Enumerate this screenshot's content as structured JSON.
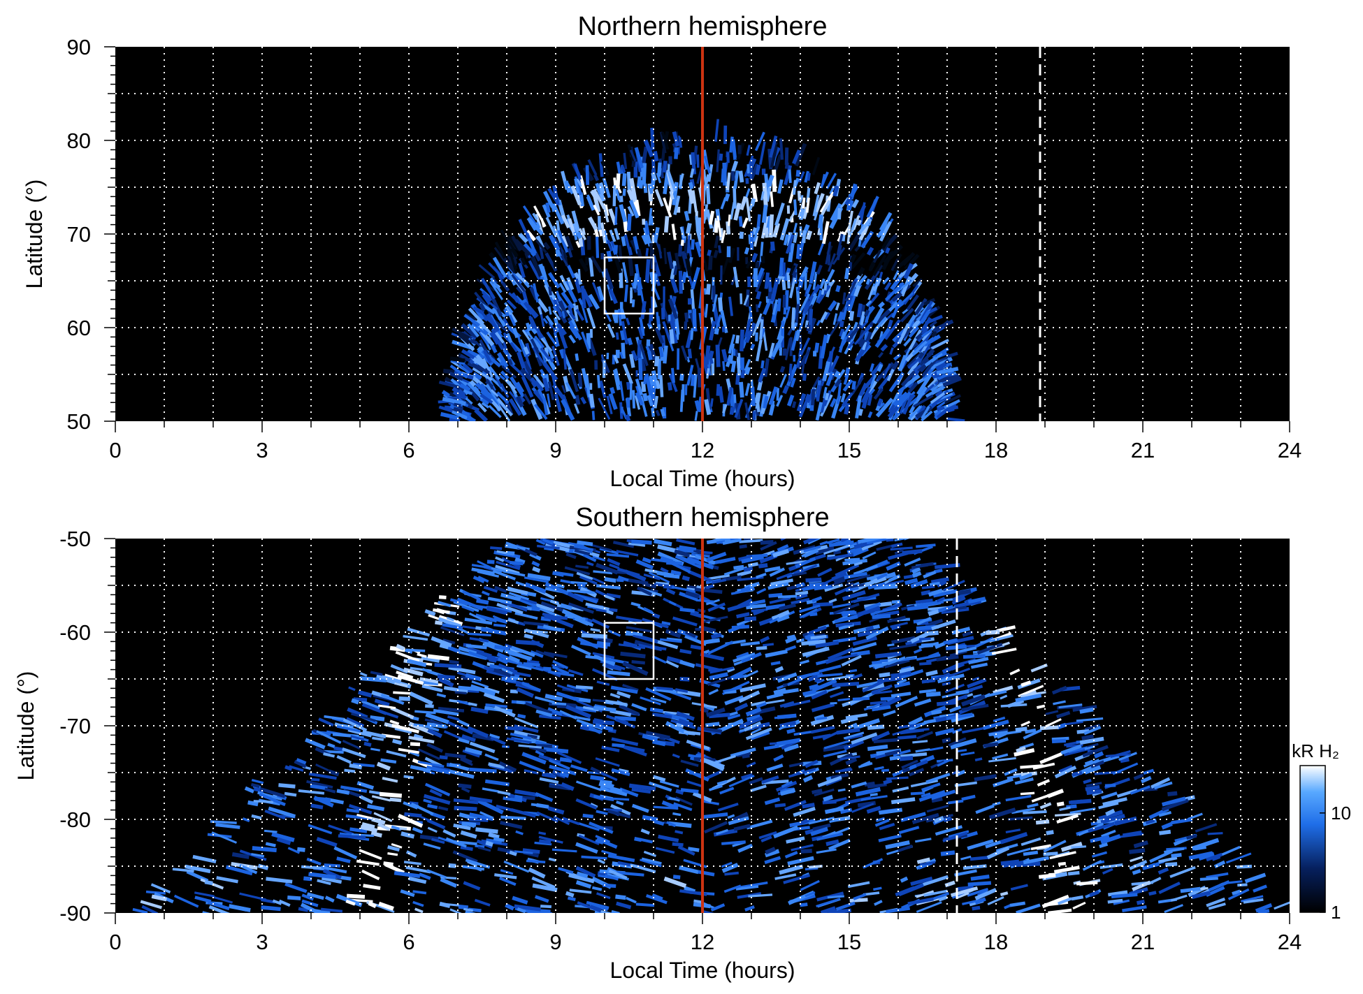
{
  "chart_data": [
    {
      "type": "heatmap",
      "title": "Northern hemisphere",
      "xlabel": "Local Time (hours)",
      "ylabel": "Latitude (°)",
      "xlim": [
        0,
        24
      ],
      "ylim": [
        50,
        90
      ],
      "xticks": [
        0,
        3,
        6,
        9,
        12,
        15,
        18,
        21,
        24
      ],
      "yticks": [
        50,
        60,
        70,
        80,
        90
      ],
      "grid": true,
      "background": "#000000",
      "colormap": "black-blue-white",
      "emission": {
        "center_lt": 12,
        "center_lat": 50,
        "half_width_lt": 5,
        "lat_extent": 30,
        "bright_ring_lat": 71,
        "dark_ring_lat": 67
      },
      "noon_line": {
        "x": 12,
        "color": "#cc3311"
      },
      "dashed_line": {
        "x": 18.9,
        "color": "#ffffff"
      },
      "box": {
        "x": [
          10,
          11
        ],
        "y": [
          61.5,
          67.5
        ],
        "color": "#ffffff"
      }
    },
    {
      "type": "heatmap",
      "title": "Southern hemisphere",
      "xlabel": "Local Time (hours)",
      "ylabel": "Latitude (°)",
      "xlim": [
        0,
        24
      ],
      "ylim": [
        -90,
        -50
      ],
      "xticks": [
        0,
        3,
        6,
        9,
        12,
        15,
        18,
        21,
        24
      ],
      "yticks": [
        -90,
        -80,
        -70,
        -60,
        -50
      ],
      "grid": true,
      "background": "#000000",
      "colormap": "black-blue-white",
      "emission": {
        "bright_arc_left_lt": 6.5,
        "bright_arc_right_lt": 17.8,
        "polar_band_lat": -84
      },
      "noon_line": {
        "x": 12,
        "color": "#cc3311"
      },
      "dashed_line": {
        "x": 17.2,
        "color": "#ffffff"
      },
      "box": {
        "x": [
          10,
          11
        ],
        "y": [
          -65,
          -59
        ],
        "color": "#ffffff"
      },
      "colorbar": {
        "label": "kR H₂",
        "scale": "log",
        "range": [
          1,
          30
        ],
        "ticks": [
          1,
          10
        ],
        "tick_labels": [
          "1",
          "10"
        ]
      }
    }
  ]
}
